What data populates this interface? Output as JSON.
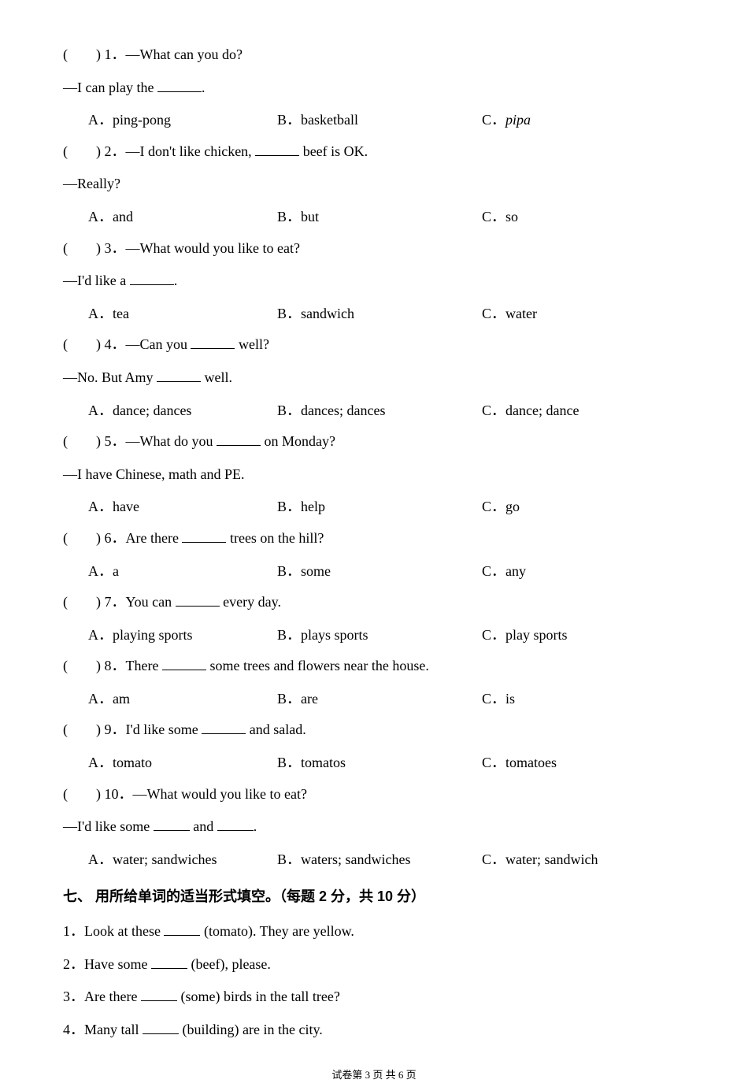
{
  "q1": {
    "stem_a": "(　　) 1．—What can you do?",
    "stem_b_pre": "—I can play the ",
    "stem_b_post": ".",
    "a": "A．ping-pong",
    "b": "B．basketball",
    "c_label": "C．",
    "c_word": "pipa"
  },
  "q2": {
    "stem_pre": "(　　) 2．—I don't like chicken, ",
    "stem_post": " beef is OK.",
    "stem_b": "—Really?",
    "a": "A．and",
    "b": "B．but",
    "c": "C．so"
  },
  "q3": {
    "stem_a": "(　　) 3．—What would you like to eat?",
    "stem_b_pre": "—I'd like a ",
    "stem_b_post": ".",
    "a": "A．tea",
    "b": "B．sandwich",
    "c": "C．water"
  },
  "q4": {
    "stem_pre": "(　　) 4．—Can you ",
    "stem_post": " well?",
    "stem_b_pre": "—No. But Amy ",
    "stem_b_post": " well.",
    "a": "A．dance; dances",
    "b": "B．dances; dances",
    "c": "C．dance; dance"
  },
  "q5": {
    "stem_pre": "(　　) 5．—What do you ",
    "stem_post": " on Monday?",
    "stem_b": "—I have Chinese, math and PE.",
    "a": "A．have",
    "b": "B．help",
    "c": "C．go"
  },
  "q6": {
    "stem_pre": "(　　) 6．Are there ",
    "stem_post": " trees on the hill?",
    "a": "A．a",
    "b": "B．some",
    "c": "C．any"
  },
  "q7": {
    "stem_pre": "(　　) 7．You can ",
    "stem_post": " every day.",
    "a": "A．playing sports",
    "b": "B．plays sports",
    "c": "C．play sports"
  },
  "q8": {
    "stem_pre": "(　　) 8．There ",
    "stem_post": " some trees and flowers near the house.",
    "a": "A．am",
    "b": "B．are",
    "c": "C．is"
  },
  "q9": {
    "stem_pre": "(　　) 9．I'd like some ",
    "stem_post": " and salad.",
    "a": "A．tomato",
    "b": "B．tomatos",
    "c": "C．tomatoes"
  },
  "q10": {
    "stem_a": "(　　) 10．—What would you like to eat?",
    "stem_b_pre": "—I'd like some ",
    "stem_b_mid": " and ",
    "stem_b_post": ".",
    "a": "A．water; sandwiches",
    "b": "B．waters; sandwiches",
    "c": "C．water; sandwich"
  },
  "section7": "七、 用所给单词的适当形式填空。（每题 2 分，共 10 分）",
  "f1_pre": "1．Look at these ",
  "f1_post": " (tomato). They are yellow.",
  "f2_pre": "2．Have some ",
  "f2_post": " (beef), please.",
  "f3_pre": "3．Are there ",
  "f3_post": " (some) birds in the tall tree?",
  "f4_pre": "4．Many tall ",
  "f4_post": " (building) are in the city.",
  "footer": "试卷第 3 页 共 6 页"
}
